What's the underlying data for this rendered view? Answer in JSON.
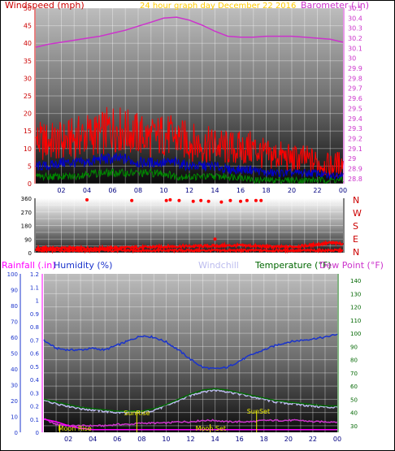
{
  "header": {
    "windspeed_label": "Windspeed (mph)",
    "title": "24 hour graph day",
    "date": "December 22 2016",
    "barometer_label": "Barometer (.in)"
  },
  "direction_letters": [
    "N",
    "W",
    "S",
    "E",
    "N"
  ],
  "lower_header": {
    "rainfall_label": "Rainfall (.in)",
    "humidity_label": "Humidity (%)",
    "windchill_label": "Windchill",
    "temperature_label": "Temperature (°F)",
    "dewpoint_label": "Dew Point (°F)"
  },
  "events": {
    "sunrise": "SunRise",
    "sunset": "SunSet",
    "moonrise": "Moon Rise",
    "moonset": "Moon Set"
  },
  "colors": {
    "windspeed_axis": "#cc0000",
    "title": "#ffcc00",
    "barometer": "#cc33cc",
    "gust": "#ff0000",
    "average": "#0000cc",
    "lowest": "#008800",
    "humidity": "#1a33cc",
    "windchill": "#bbbbee",
    "temperature": "#006600",
    "dewpoint": "#cc33cc",
    "rainfall": "#ff00ff",
    "event": "#eeee00"
  },
  "chart_data": [
    {
      "type": "line",
      "x_ticks": [
        "02",
        "04",
        "06",
        "08",
        "10",
        "12",
        "14",
        "16",
        "18",
        "20",
        "22",
        "00"
      ],
      "left_axis": {
        "label": "Windspeed (mph)",
        "range": [
          0,
          50
        ],
        "ticks": [
          0,
          5,
          10,
          15,
          20,
          25,
          30,
          35,
          40,
          45,
          50
        ]
      },
      "right_axis": {
        "label": "Barometer (.in)",
        "range": [
          28.75,
          30.5
        ],
        "ticks": [
          "28.8",
          "28.9",
          "29",
          "29.1",
          "29.2",
          "29.3",
          "29.4",
          "29.5",
          "29.6",
          "29.7",
          "29.8",
          "29.9",
          "30",
          "30.1",
          "30.2",
          "30.3",
          "30.4",
          "30.5"
        ]
      },
      "x_hours": [
        0,
        1,
        2,
        3,
        4,
        5,
        6,
        7,
        8,
        9,
        10,
        11,
        12,
        13,
        14,
        15,
        16,
        17,
        18,
        19,
        20,
        21,
        22,
        23,
        24
      ],
      "series": [
        {
          "axis": "right",
          "values": [
            30.11,
            30.14,
            30.16,
            30.18,
            30.2,
            30.22,
            30.25,
            30.28,
            30.32,
            30.36,
            30.4,
            30.41,
            30.38,
            30.33,
            30.27,
            30.22,
            30.21,
            30.21,
            30.22,
            30.22,
            30.22,
            30.21,
            30.2,
            30.19,
            30.16
          ]
        },
        {
          "axis": "left",
          "values": [
            12,
            12,
            12,
            13,
            14,
            14,
            16,
            15,
            14,
            13,
            14,
            13,
            12,
            11,
            11,
            10,
            10,
            10,
            8,
            8,
            7,
            7,
            6,
            5,
            6
          ]
        },
        {
          "axis": "left",
          "values": [
            5,
            5,
            6,
            6,
            6,
            7,
            7,
            7,
            6,
            6,
            6,
            6,
            5,
            5,
            5,
            4,
            4,
            4,
            3,
            3,
            3,
            3,
            3,
            2,
            3
          ]
        },
        {
          "axis": "left",
          "values": [
            2,
            2,
            2,
            2,
            3,
            3,
            3,
            3,
            3,
            3,
            3,
            2,
            2,
            2,
            2,
            2,
            2,
            1,
            1,
            1,
            1,
            1,
            1,
            1,
            1
          ]
        }
      ]
    },
    {
      "type": "scatter",
      "y_range": [
        0,
        360
      ],
      "y_ticks": [
        0,
        45,
        90,
        135,
        180,
        225,
        270,
        315,
        360
      ],
      "x_ticks": [
        "02",
        "04",
        "06",
        "08",
        "10",
        "12",
        "14",
        "16",
        "18",
        "20",
        "22",
        "00"
      ],
      "scatter_points": [
        [
          4,
          350
        ],
        [
          7.5,
          345
        ],
        [
          10.2,
          345
        ],
        [
          10.5,
          350
        ],
        [
          11.2,
          345
        ],
        [
          12.3,
          340
        ],
        [
          12.9,
          345
        ],
        [
          13.5,
          340
        ],
        [
          14.5,
          335
        ],
        [
          15.2,
          345
        ],
        [
          16,
          340
        ],
        [
          16.5,
          345
        ],
        [
          17.2,
          345
        ],
        [
          17.6,
          345
        ],
        [
          14,
          90
        ]
      ],
      "band_values": [
        30,
        30,
        30,
        30,
        30,
        31,
        32,
        33,
        35,
        37,
        40,
        42,
        43,
        44,
        45,
        47,
        48,
        45,
        40,
        38,
        40,
        45,
        55,
        65,
        60
      ]
    },
    {
      "type": "line",
      "x_ticks": [
        "02",
        "04",
        "06",
        "08",
        "10",
        "12",
        "14",
        "16",
        "18",
        "20",
        "22",
        "00"
      ],
      "rain_axis": {
        "label": "Rainfall (.in)",
        "range": [
          0,
          1.2
        ],
        "ticks": [
          "0",
          "0.1",
          "0.2",
          "0.3",
          "0.4",
          "0.5",
          "0.6",
          "0.7",
          "0.8",
          "0.9",
          "1",
          "1.1",
          "1.2"
        ]
      },
      "humidity_axis": {
        "label": "Humidity (%)",
        "range": [
          0,
          100
        ],
        "ticks": [
          0,
          10,
          20,
          30,
          40,
          50,
          60,
          70,
          80,
          90,
          100
        ]
      },
      "temp_axis": {
        "label": "Temperature (°F)",
        "range": [
          25,
          145
        ],
        "ticks": [
          30,
          40,
          50,
          60,
          70,
          80,
          90,
          100,
          110,
          120,
          130,
          140
        ]
      },
      "x_hours": [
        0,
        1,
        2,
        3,
        4,
        5,
        6,
        7,
        8,
        9,
        10,
        11,
        12,
        13,
        14,
        15,
        16,
        17,
        18,
        19,
        20,
        21,
        22,
        23,
        24
      ],
      "series": [
        {
          "name": "Humidity (%)",
          "axis": "humidity",
          "values": [
            58,
            53,
            52,
            52,
            53,
            52,
            55,
            58,
            61,
            60,
            57,
            52,
            46,
            41,
            40,
            41,
            45,
            49,
            52,
            55,
            57,
            58,
            59,
            60,
            62
          ]
        },
        {
          "name": "Windchill",
          "axis": "temp",
          "values": [
            49,
            47,
            45,
            43,
            42,
            41,
            40,
            40,
            40,
            42,
            45,
            49,
            53,
            56,
            57,
            56,
            54,
            52,
            50,
            48,
            47,
            46,
            45,
            44,
            44
          ]
        },
        {
          "name": "Temperature (°F)",
          "axis": "temp",
          "values": [
            50,
            48,
            46,
            44,
            43,
            42,
            41,
            41,
            41,
            43,
            46,
            50,
            54,
            57,
            58,
            57,
            55,
            53,
            51,
            49,
            48,
            47,
            46,
            45,
            45
          ]
        },
        {
          "name": "Dew Point (°F)",
          "axis": "temp",
          "values": [
            35,
            31,
            30,
            30,
            30,
            30,
            31,
            31,
            32,
            32,
            32,
            33,
            33,
            34,
            34,
            33,
            33,
            33,
            34,
            34,
            34,
            34,
            33,
            33,
            33
          ]
        },
        {
          "name": "Rainfall (.in)",
          "axis": "rain",
          "values": [
            0.1,
            0.08,
            0.05,
            0.03,
            0.02,
            0.02,
            0.02,
            0.02,
            0.02,
            0.02,
            0.02,
            0.02,
            0.02,
            0.02,
            0.02,
            0.02,
            0.02,
            0.02,
            0.02,
            0.02,
            0.02,
            0.02,
            0.02,
            0.02,
            0.02
          ]
        }
      ],
      "event_hours": {
        "sunrise": 7.6,
        "sunset": 17.4,
        "moonrise": 1.3,
        "moonset": 13.6
      }
    }
  ]
}
